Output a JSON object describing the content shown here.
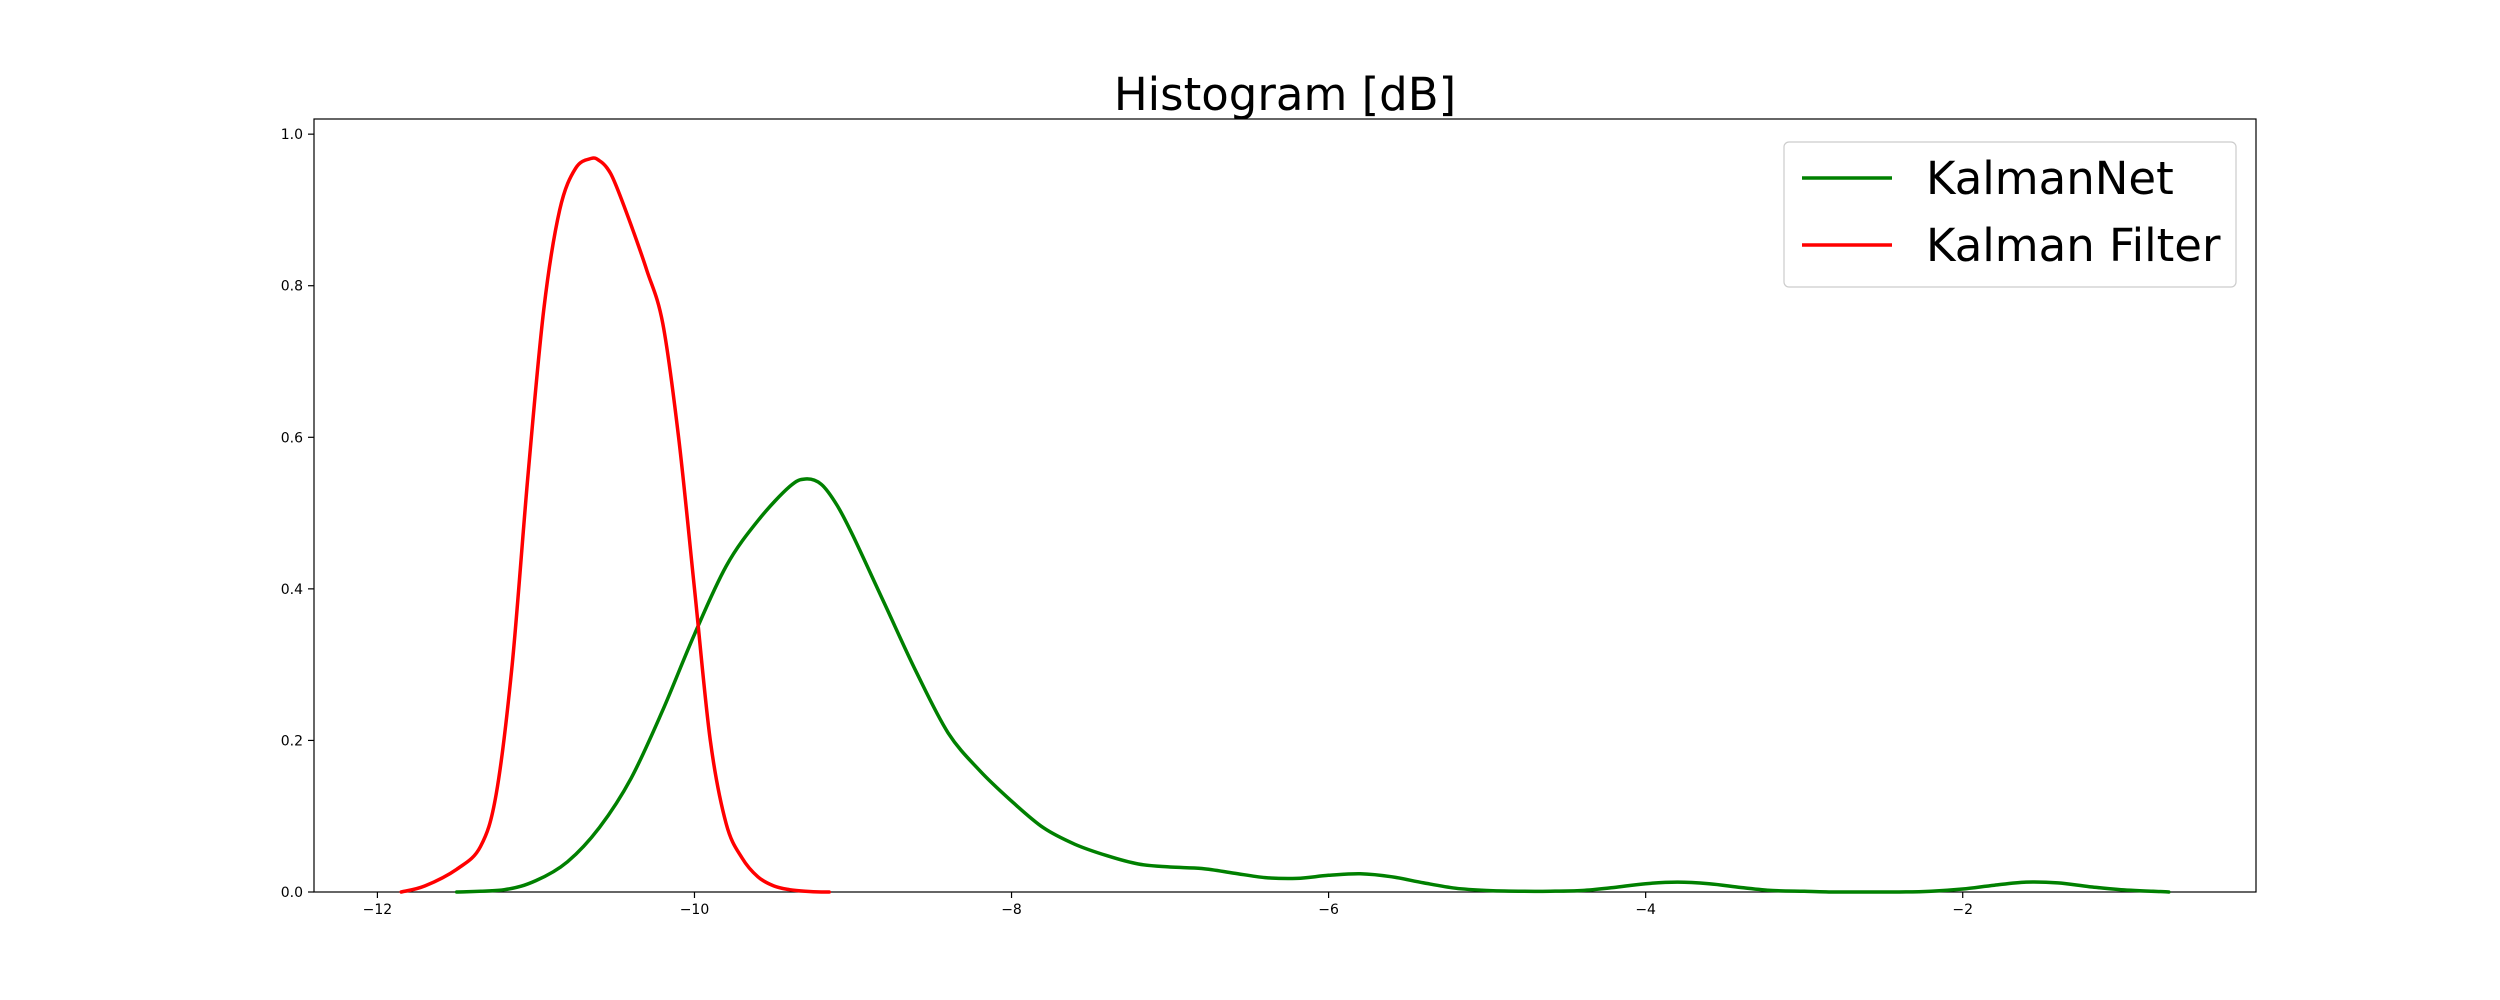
{
  "chart_data": {
    "type": "line",
    "title": "Histogram [dB]",
    "xlabel": "",
    "ylabel": "",
    "xlim": [
      -12.4,
      -0.15
    ],
    "ylim": [
      0.0,
      1.02
    ],
    "x_ticks": [
      -12,
      -10,
      -8,
      -6,
      -4,
      -2
    ],
    "x_tick_labels": [
      "−12",
      "−10",
      "−8",
      "−6",
      "−4",
      "−2"
    ],
    "y_ticks": [
      0.0,
      0.2,
      0.4,
      0.6,
      0.8,
      1.0
    ],
    "y_tick_labels": [
      "0.0",
      "0.2",
      "0.4",
      "0.6",
      "0.8",
      "1.0"
    ],
    "grid": false,
    "legend_position": "top-right",
    "series": [
      {
        "name": "KalmanNet",
        "color": "#008000",
        "x": [
          -11.5,
          -11.2,
          -11.0,
          -10.8,
          -10.6,
          -10.4,
          -10.2,
          -10.0,
          -9.8,
          -9.6,
          -9.4,
          -9.3,
          -9.2,
          -9.1,
          -9.0,
          -8.8,
          -8.6,
          -8.4,
          -8.2,
          -8.0,
          -7.8,
          -7.6,
          -7.4,
          -7.2,
          -7.0,
          -6.8,
          -6.6,
          -6.4,
          -6.2,
          -6.0,
          -5.8,
          -5.6,
          -5.4,
          -5.2,
          -5.0,
          -4.8,
          -4.6,
          -4.4,
          -4.2,
          -4.0,
          -3.8,
          -3.6,
          -3.4,
          -3.2,
          -3.0,
          -2.8,
          -2.6,
          -2.4,
          -2.2,
          -2.0,
          -1.8,
          -1.6,
          -1.4,
          -1.2,
          -1.0,
          -0.7
        ],
        "y": [
          0.0,
          0.003,
          0.015,
          0.04,
          0.085,
          0.15,
          0.24,
          0.34,
          0.43,
          0.49,
          0.535,
          0.545,
          0.538,
          0.51,
          0.47,
          0.38,
          0.29,
          0.21,
          0.16,
          0.12,
          0.085,
          0.063,
          0.048,
          0.037,
          0.033,
          0.031,
          0.025,
          0.019,
          0.018,
          0.022,
          0.024,
          0.02,
          0.012,
          0.005,
          0.002,
          0.001,
          0.001,
          0.002,
          0.006,
          0.011,
          0.013,
          0.011,
          0.006,
          0.002,
          0.001,
          0.0,
          0.0,
          0.0,
          0.001,
          0.004,
          0.009,
          0.013,
          0.012,
          0.007,
          0.003,
          0.0
        ]
      },
      {
        "name": "Kalman Filter",
        "color": "#ff0000",
        "x": [
          -11.85,
          -11.7,
          -11.5,
          -11.35,
          -11.25,
          -11.15,
          -11.05,
          -10.95,
          -10.85,
          -10.75,
          -10.65,
          -10.6,
          -10.55,
          -10.5,
          -10.4,
          -10.3,
          -10.2,
          -10.1,
          -10.0,
          -9.9,
          -9.8,
          -9.7,
          -9.6,
          -9.5,
          -9.4,
          -9.3,
          -9.2,
          -9.15
        ],
        "y": [
          0.0,
          0.008,
          0.03,
          0.06,
          0.13,
          0.3,
          0.55,
          0.77,
          0.9,
          0.955,
          0.968,
          0.965,
          0.955,
          0.935,
          0.88,
          0.82,
          0.75,
          0.6,
          0.4,
          0.2,
          0.09,
          0.045,
          0.02,
          0.008,
          0.003,
          0.001,
          0.0,
          0.0
        ]
      }
    ]
  }
}
